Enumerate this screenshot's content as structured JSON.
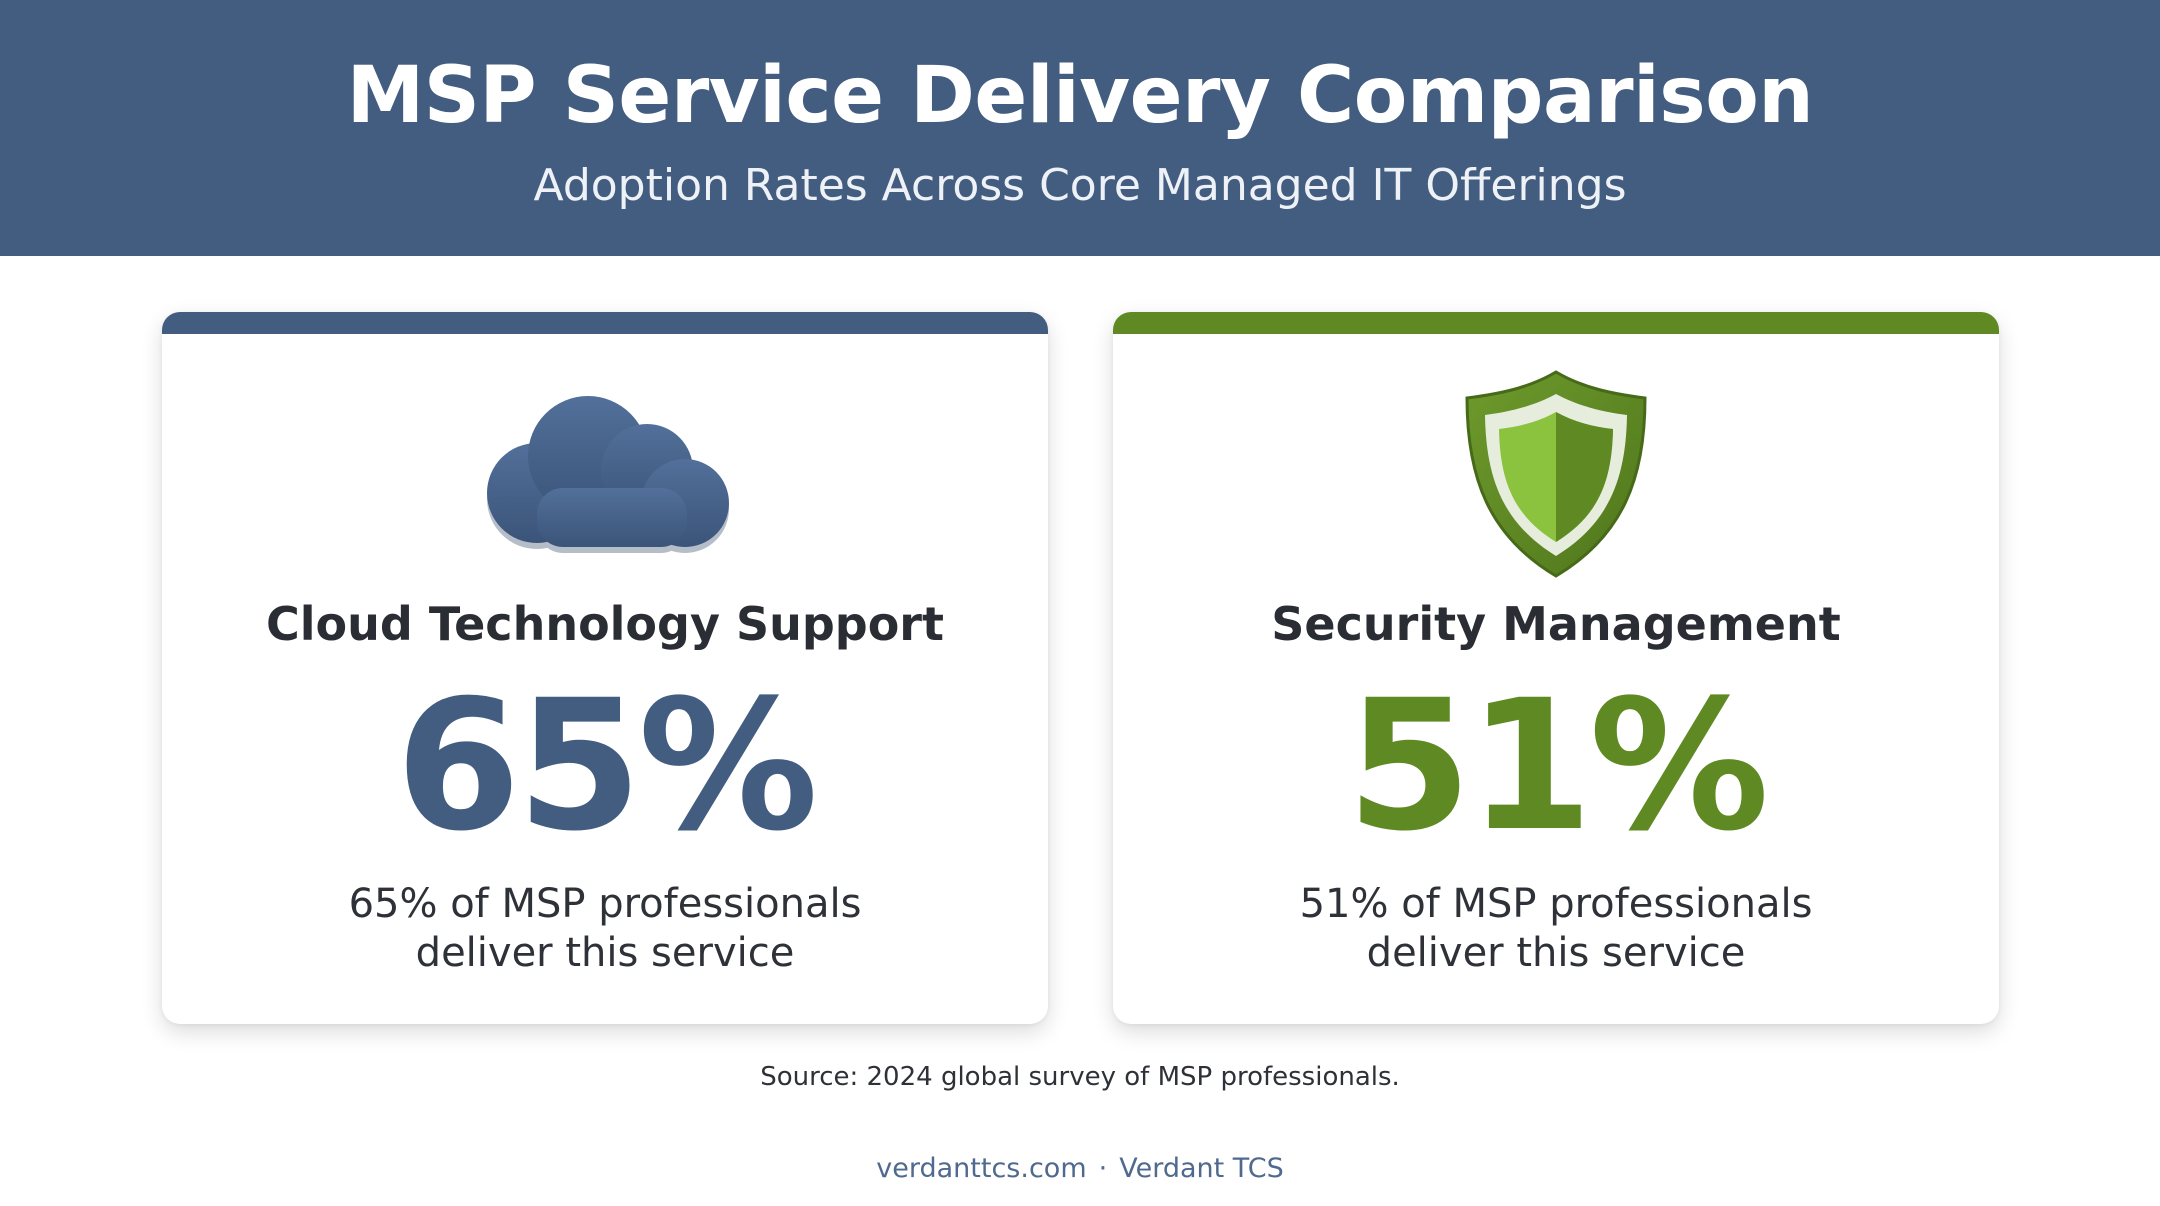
{
  "header": {
    "title": "MSP Service Delivery Comparison",
    "subtitle": "Adoption Rates Across Core Managed IT Offerings"
  },
  "cards": [
    {
      "icon": "cloud-icon",
      "label": "Cloud Technology Support",
      "stat": "65%",
      "value_percent": 65,
      "desc_line1": "65% of MSP professionals",
      "desc_line2": "deliver this service",
      "accent_color": "#435d80"
    },
    {
      "icon": "shield-icon",
      "label": "Security Management",
      "stat": "51%",
      "value_percent": 51,
      "desc_line1": "51% of MSP professionals",
      "desc_line2": "deliver this service",
      "accent_color": "#5f8a23"
    }
  ],
  "source": "Source: 2024 global survey of MSP professionals.",
  "footer": {
    "site": "verdanttcs.com",
    "separator": "·",
    "brand": "Verdant TCS"
  }
}
